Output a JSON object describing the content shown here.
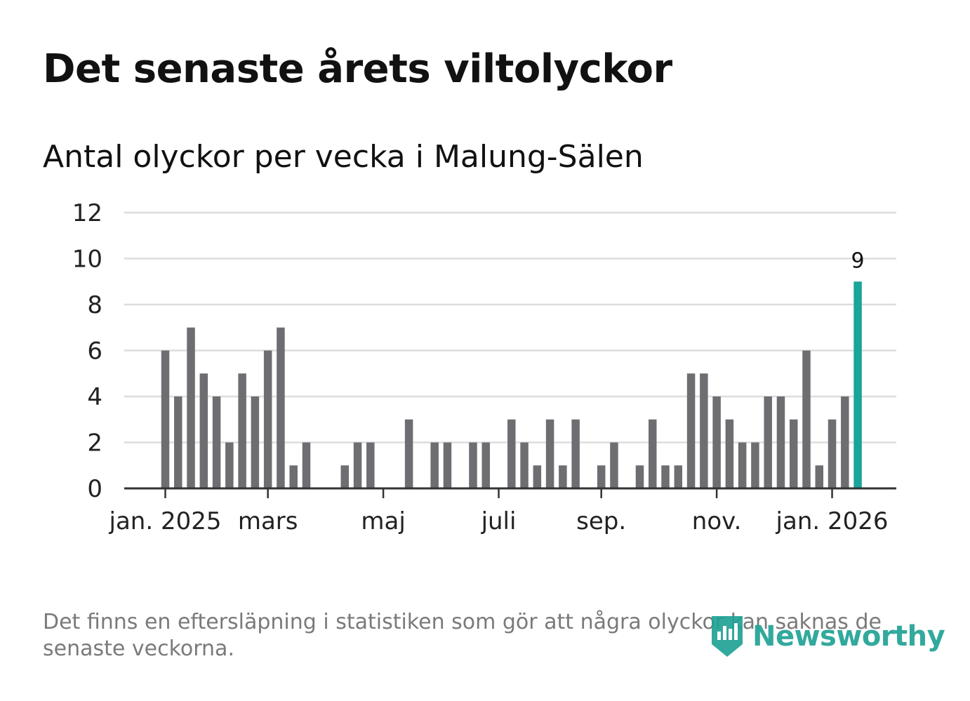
{
  "title": "Det senaste årets viltolyckor",
  "subtitle": "Antal olyckor per vecka i Malung-Sälen",
  "footnote": "Det finns en eftersläpning i statistiken som gör att några olyckor kan saknas de senaste veckorna.",
  "brand": {
    "name": "Newsworthy",
    "icon": "newsworthy-logo-icon"
  },
  "colors": {
    "bar": "#6e6d72",
    "highlight": "#1aa49a",
    "grid": "#dddddd",
    "axis": "#333333"
  },
  "chart_data": {
    "type": "bar",
    "title": "Antal olyckor per vecka i Malung-Sälen",
    "xlabel": "",
    "ylabel": "",
    "ylim": [
      0,
      12
    ],
    "yticks": [
      "0",
      "2",
      "4",
      "6",
      "8",
      "10",
      "12"
    ],
    "xticks": [
      {
        "label": "jan. 2025",
        "week": 0
      },
      {
        "label": "mars",
        "week": 8
      },
      {
        "label": "maj",
        "week": 17
      },
      {
        "label": "juli",
        "week": 26
      },
      {
        "label": "sep.",
        "week": 34
      },
      {
        "label": "nov.",
        "week": 43
      },
      {
        "label": "jan. 2026",
        "week": 52
      }
    ],
    "values": [
      6,
      4,
      7,
      5,
      4,
      2,
      5,
      4,
      6,
      7,
      1,
      2,
      0,
      0,
      1,
      2,
      2,
      0,
      0,
      3,
      0,
      2,
      2,
      0,
      2,
      2,
      0,
      3,
      2,
      1,
      3,
      1,
      3,
      0,
      1,
      2,
      0,
      1,
      3,
      1,
      1,
      5,
      5,
      4,
      3,
      2,
      2,
      4,
      4,
      3,
      6,
      1,
      3,
      4,
      9
    ],
    "highlight_index": 54,
    "highlight_label": "9"
  }
}
